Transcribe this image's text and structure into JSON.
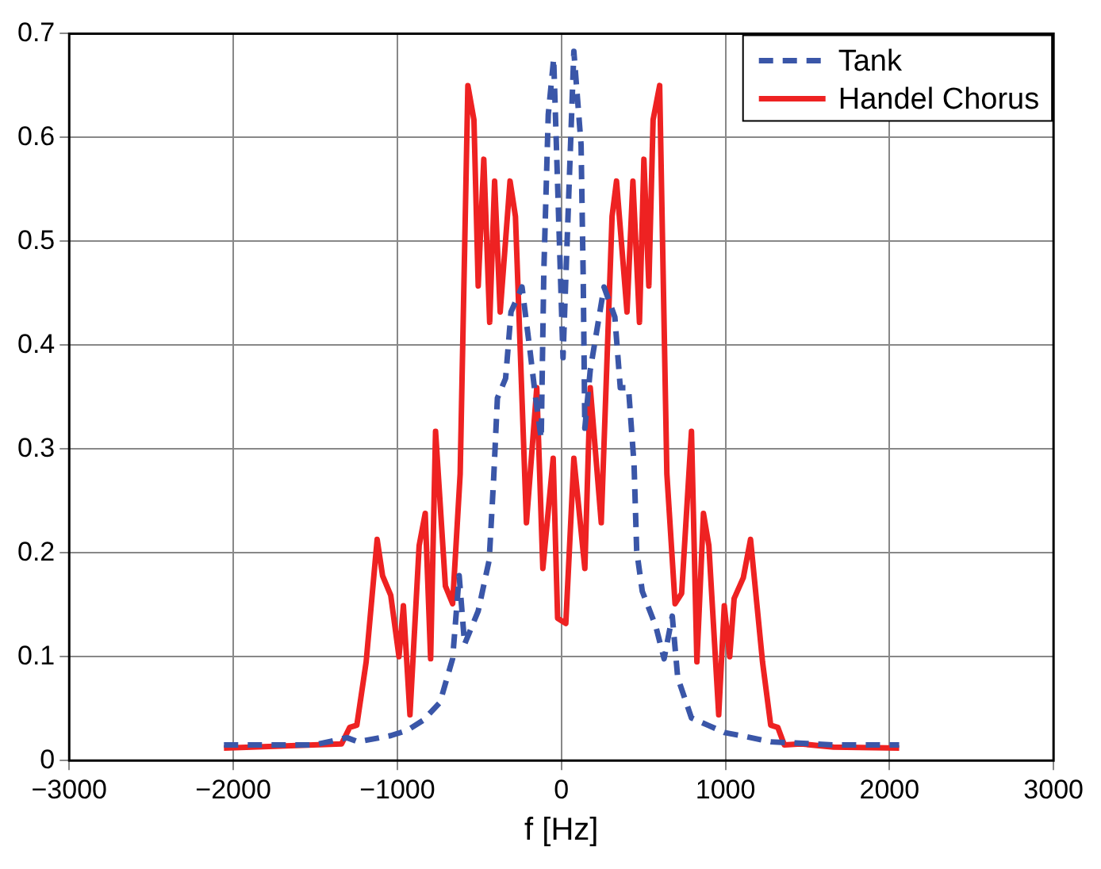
{
  "chart_data": {
    "type": "line",
    "xlabel": "f [Hz]",
    "xlim": [
      -3000,
      3000
    ],
    "xticks": [
      -3000,
      -2000,
      -1000,
      0,
      1000,
      2000,
      3000
    ],
    "ylim": [
      0,
      0.7
    ],
    "yticks": [
      0,
      0.1,
      0.2,
      0.3,
      0.4,
      0.5,
      0.6,
      0.7
    ],
    "grid": true,
    "legend": "top right",
    "marker": "none",
    "series": [
      {
        "name": "Tank",
        "color": "#3a56a8",
        "line_style": "dashed",
        "x": [
          -2057,
          -1507,
          -1307,
          -1240,
          -1040,
          -940,
          -840,
          -740,
          -663,
          -623,
          -590,
          -507,
          -440,
          -413,
          -390,
          -340,
          -307,
          -240,
          -190,
          -157,
          -123,
          -107,
          -80,
          -47,
          10,
          76,
          120,
          133,
          143,
          176,
          260,
          326,
          359,
          409,
          443,
          459,
          493,
          576,
          626,
          676,
          709,
          793,
          893,
          993,
          1126,
          1276,
          1426,
          1659,
          2059
        ],
        "values": [
          0.015,
          0.015,
          0.022,
          0.018,
          0.024,
          0.029,
          0.039,
          0.056,
          0.098,
          0.178,
          0.112,
          0.144,
          0.193,
          0.271,
          0.349,
          0.368,
          0.432,
          0.456,
          0.393,
          0.349,
          0.31,
          0.471,
          0.622,
          0.676,
          0.388,
          0.683,
          0.593,
          0.466,
          0.32,
          0.376,
          0.456,
          0.427,
          0.359,
          0.359,
          0.285,
          0.202,
          0.163,
          0.129,
          0.098,
          0.139,
          0.08,
          0.041,
          0.034,
          0.027,
          0.023,
          0.018,
          0.017,
          0.015,
          0.015
        ]
      },
      {
        "name": "Handel Chorus",
        "color": "#ee2222",
        "line_style": "solid",
        "x": [
          -2057,
          -1340,
          -1290,
          -1247,
          -1190,
          -1123,
          -1090,
          -1040,
          -990,
          -963,
          -923,
          -867,
          -830,
          -797,
          -767,
          -707,
          -663,
          -617,
          -570,
          -533,
          -507,
          -473,
          -437,
          -407,
          -373,
          -313,
          -280,
          -213,
          -150,
          -113,
          -50,
          -23,
          27,
          76,
          143,
          176,
          243,
          309,
          336,
          400,
          436,
          476,
          503,
          533,
          559,
          599,
          643,
          693,
          733,
          793,
          826,
          866,
          899,
          959,
          993,
          1026,
          1053,
          1109,
          1153,
          1226,
          1276,
          1319,
          1359,
          1459,
          1659,
          2059
        ],
        "values": [
          0.012,
          0.016,
          0.032,
          0.034,
          0.095,
          0.213,
          0.178,
          0.159,
          0.1,
          0.149,
          0.044,
          0.207,
          0.238,
          0.098,
          0.317,
          0.168,
          0.151,
          0.276,
          0.65,
          0.617,
          0.457,
          0.579,
          0.422,
          0.558,
          0.432,
          0.558,
          0.524,
          0.229,
          0.359,
          0.185,
          0.291,
          0.137,
          0.132,
          0.291,
          0.185,
          0.359,
          0.229,
          0.524,
          0.558,
          0.432,
          0.558,
          0.422,
          0.579,
          0.457,
          0.617,
          0.65,
          0.276,
          0.151,
          0.161,
          0.317,
          0.095,
          0.238,
          0.207,
          0.044,
          0.149,
          0.1,
          0.156,
          0.176,
          0.213,
          0.095,
          0.034,
          0.032,
          0.015,
          0.016,
          0.013,
          0.012
        ]
      }
    ]
  }
}
